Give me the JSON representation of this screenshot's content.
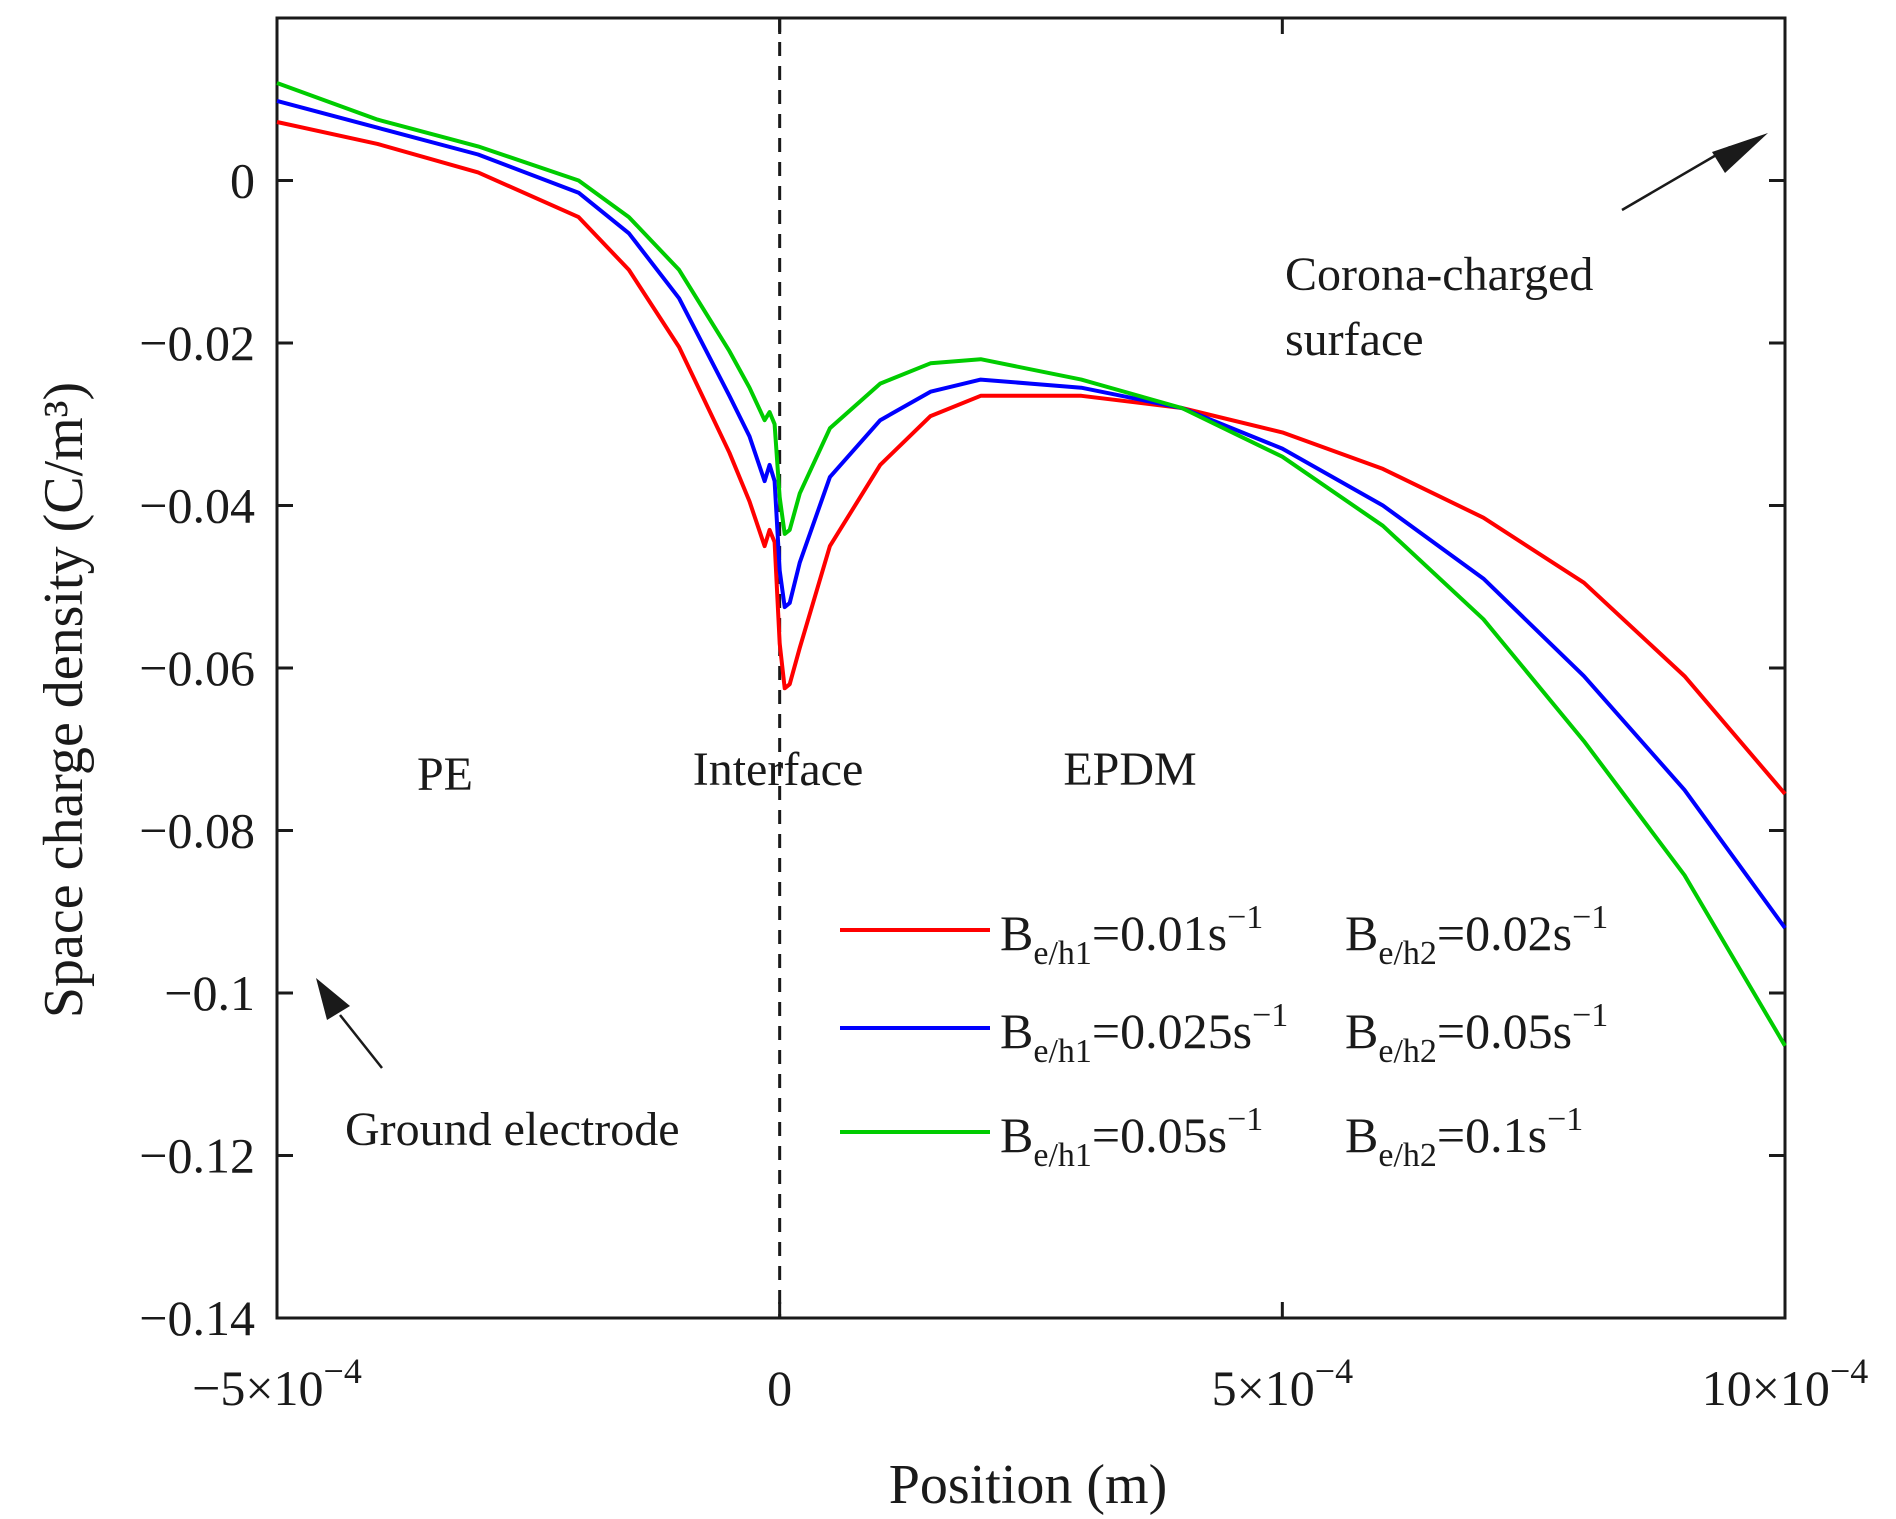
{
  "chart_data": {
    "type": "line",
    "xlabel": "Position (m)",
    "ylabel": "Space charge density (C/m³)",
    "xlim": [
      -0.0005,
      0.001
    ],
    "ylim": [
      -0.14,
      0.02
    ],
    "x_ticks": [
      {
        "value": -0.0005,
        "label": "−5×10",
        "exp": "−4"
      },
      {
        "value": 0,
        "label": "0",
        "exp": ""
      },
      {
        "value": 0.0005,
        "label": "5×10",
        "exp": "−4"
      },
      {
        "value": 0.001,
        "label": "10×10",
        "exp": "−4"
      }
    ],
    "y_ticks": [
      {
        "value": 0,
        "label": "0"
      },
      {
        "value": -0.02,
        "label": "−0.02"
      },
      {
        "value": -0.04,
        "label": "−0.04"
      },
      {
        "value": -0.06,
        "label": "−0.06"
      },
      {
        "value": -0.08,
        "label": "−0.08"
      },
      {
        "value": -0.1,
        "label": "−0.1"
      },
      {
        "value": -0.12,
        "label": "−0.12"
      },
      {
        "value": -0.14,
        "label": "−0.14"
      }
    ],
    "interface_x": 0,
    "regions": {
      "pe": "PE",
      "interface": "Interface",
      "epdm": "EPDM"
    },
    "annotations": {
      "corona_line1": "Corona-charged",
      "corona_line2": "surface",
      "ground": "Ground electrode"
    },
    "series": [
      {
        "name": "Be/h1=0.01s⁻¹ Be/h2=0.02s⁻¹",
        "color": "#ff0000",
        "legend": {
          "b1": "0.01s",
          "b2": "0.02s"
        },
        "x": [
          -0.0005,
          -0.0004,
          -0.0003,
          -0.0002,
          -0.00015,
          -0.0001,
          -5e-05,
          -3e-05,
          -1.5e-05,
          -1e-05,
          -5e-06,
          0,
          5e-06,
          1e-05,
          2e-05,
          5e-05,
          0.0001,
          0.00015,
          0.0002,
          0.0003,
          0.0004,
          0.0005,
          0.0006,
          0.0007,
          0.0008,
          0.0009,
          0.001
        ],
        "y": [
          0.0072,
          0.0045,
          0.001,
          -0.0045,
          -0.011,
          -0.0205,
          -0.0335,
          -0.0395,
          -0.045,
          -0.043,
          -0.0445,
          -0.057,
          -0.0625,
          -0.062,
          -0.0575,
          -0.045,
          -0.035,
          -0.029,
          -0.0265,
          -0.0265,
          -0.028,
          -0.031,
          -0.0355,
          -0.0415,
          -0.0495,
          -0.061,
          -0.0755
        ]
      },
      {
        "name": "Be/h1=0.025s⁻¹ Be/h2=0.05s⁻¹",
        "color": "#0000ff",
        "legend": {
          "b1": "0.025s",
          "b2": "0.05s"
        },
        "x": [
          -0.0005,
          -0.0004,
          -0.0003,
          -0.0002,
          -0.00015,
          -0.0001,
          -5e-05,
          -3e-05,
          -1.5e-05,
          -1e-05,
          -5e-06,
          0,
          5e-06,
          1e-05,
          2e-05,
          5e-05,
          0.0001,
          0.00015,
          0.0002,
          0.0003,
          0.0004,
          0.0005,
          0.0006,
          0.0007,
          0.0008,
          0.0009,
          0.001
        ],
        "y": [
          0.0098,
          0.0065,
          0.0032,
          -0.0015,
          -0.0065,
          -0.0145,
          -0.0265,
          -0.0315,
          -0.037,
          -0.035,
          -0.037,
          -0.048,
          -0.0525,
          -0.052,
          -0.047,
          -0.0365,
          -0.0295,
          -0.026,
          -0.0245,
          -0.0255,
          -0.028,
          -0.033,
          -0.04,
          -0.049,
          -0.061,
          -0.075,
          -0.092
        ]
      },
      {
        "name": "Be/h1=0.05s⁻¹ Be/h2=0.1s⁻¹",
        "color": "#00cc00",
        "legend": {
          "b1": "0.05s",
          "b2": "0.1s"
        },
        "x": [
          -0.0005,
          -0.0004,
          -0.0003,
          -0.0002,
          -0.00015,
          -0.0001,
          -5e-05,
          -3e-05,
          -1.5e-05,
          -1e-05,
          -5e-06,
          0,
          5e-06,
          1e-05,
          2e-05,
          5e-05,
          0.0001,
          0.00015,
          0.0002,
          0.0003,
          0.0004,
          0.0005,
          0.0006,
          0.0007,
          0.0008,
          0.0009,
          0.001
        ],
        "y": [
          0.012,
          0.0075,
          0.0042,
          0.0,
          -0.0045,
          -0.011,
          -0.021,
          -0.0255,
          -0.0295,
          -0.0285,
          -0.03,
          -0.039,
          -0.0435,
          -0.043,
          -0.0385,
          -0.0305,
          -0.025,
          -0.0225,
          -0.022,
          -0.0245,
          -0.028,
          -0.034,
          -0.0425,
          -0.054,
          -0.069,
          -0.0855,
          -0.1065
        ]
      }
    ]
  }
}
